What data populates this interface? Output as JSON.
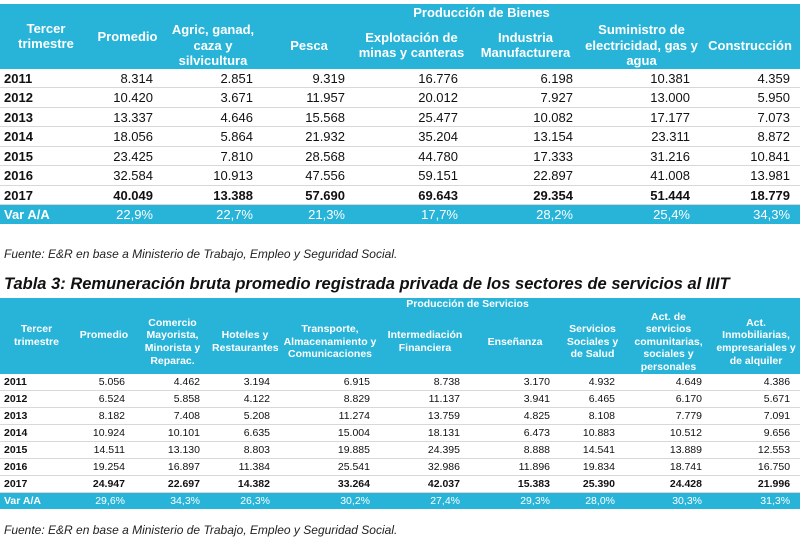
{
  "table1": {
    "group_header": "Producción de Bienes",
    "columns": [
      "Tercer trimestre",
      "Promedio",
      "Agric, ganad, caza y silvicultura",
      "Pesca",
      "Explotación de minas y canteras",
      "Industria Manufacturera",
      "Suministro de electricidad, gas y agua",
      "Construcción"
    ],
    "rows": [
      [
        "2011",
        "8.314",
        "2.851",
        "9.319",
        "16.776",
        "6.198",
        "10.381",
        "4.359"
      ],
      [
        "2012",
        "10.420",
        "3.671",
        "11.957",
        "20.012",
        "7.927",
        "13.000",
        "5.950"
      ],
      [
        "2013",
        "13.337",
        "4.646",
        "15.568",
        "25.477",
        "10.082",
        "17.177",
        "7.073"
      ],
      [
        "2014",
        "18.056",
        "5.864",
        "21.932",
        "35.204",
        "13.154",
        "23.311",
        "8.872"
      ],
      [
        "2015",
        "23.425",
        "7.810",
        "28.568",
        "44.780",
        "17.333",
        "31.216",
        "10.841"
      ],
      [
        "2016",
        "32.584",
        "10.913",
        "47.556",
        "59.151",
        "22.897",
        "41.008",
        "13.981"
      ],
      [
        "2017",
        "40.049",
        "13.388",
        "57.690",
        "69.643",
        "29.354",
        "51.444",
        "18.779"
      ]
    ],
    "var_row": [
      "Var A/A",
      "22,9%",
      "22,7%",
      "21,3%",
      "17,7%",
      "28,2%",
      "25,4%",
      "34,3%"
    ]
  },
  "source1": "Fuente: E&R en base a Ministerio de Trabajo, Empleo y Seguridad Social.",
  "title2": "Tabla 3: Remuneración bruta promedio registrada privada de los sectores de servicios al IIIT",
  "table2": {
    "group_header": "Producción de Servicios",
    "columns": [
      "Tercer trimestre",
      "Promedio",
      "Comercio Mayorista, Minorista y Reparac.",
      "Hoteles y Restaurantes",
      "Transporte, Almacenamiento y Comunicaciones",
      "Intermediación Financiera",
      "Enseñanza",
      "Servicios Sociales y de Salud",
      "Act. de servicios comunitarias, sociales y personales",
      "Act. Inmobiliarias, empresariales y de alquiler"
    ],
    "rows": [
      [
        "2011",
        "5.056",
        "4.462",
        "3.194",
        "6.915",
        "8.738",
        "3.170",
        "4.932",
        "4.649",
        "4.386"
      ],
      [
        "2012",
        "6.524",
        "5.858",
        "4.122",
        "8.829",
        "11.137",
        "3.941",
        "6.465",
        "6.170",
        "5.671"
      ],
      [
        "2013",
        "8.182",
        "7.408",
        "5.208",
        "11.274",
        "13.759",
        "4.825",
        "8.108",
        "7.779",
        "7.091"
      ],
      [
        "2014",
        "10.924",
        "10.101",
        "6.635",
        "15.004",
        "18.131",
        "6.473",
        "10.883",
        "10.512",
        "9.656"
      ],
      [
        "2015",
        "14.511",
        "13.130",
        "8.803",
        "19.885",
        "24.395",
        "8.888",
        "14.541",
        "13.889",
        "12.553"
      ],
      [
        "2016",
        "19.254",
        "16.897",
        "11.384",
        "25.541",
        "32.986",
        "11.896",
        "19.834",
        "18.741",
        "16.750"
      ],
      [
        "2017",
        "24.947",
        "22.697",
        "14.382",
        "33.264",
        "42.037",
        "15.383",
        "25.390",
        "24.428",
        "21.996"
      ]
    ],
    "var_row": [
      "Var A/A",
      "29,6%",
      "34,3%",
      "26,3%",
      "30,2%",
      "27,4%",
      "29,3%",
      "28,0%",
      "30,3%",
      "31,3%"
    ]
  },
  "source2": "Fuente: E&R en base a Ministerio de Trabajo, Empleo y Seguridad Social."
}
